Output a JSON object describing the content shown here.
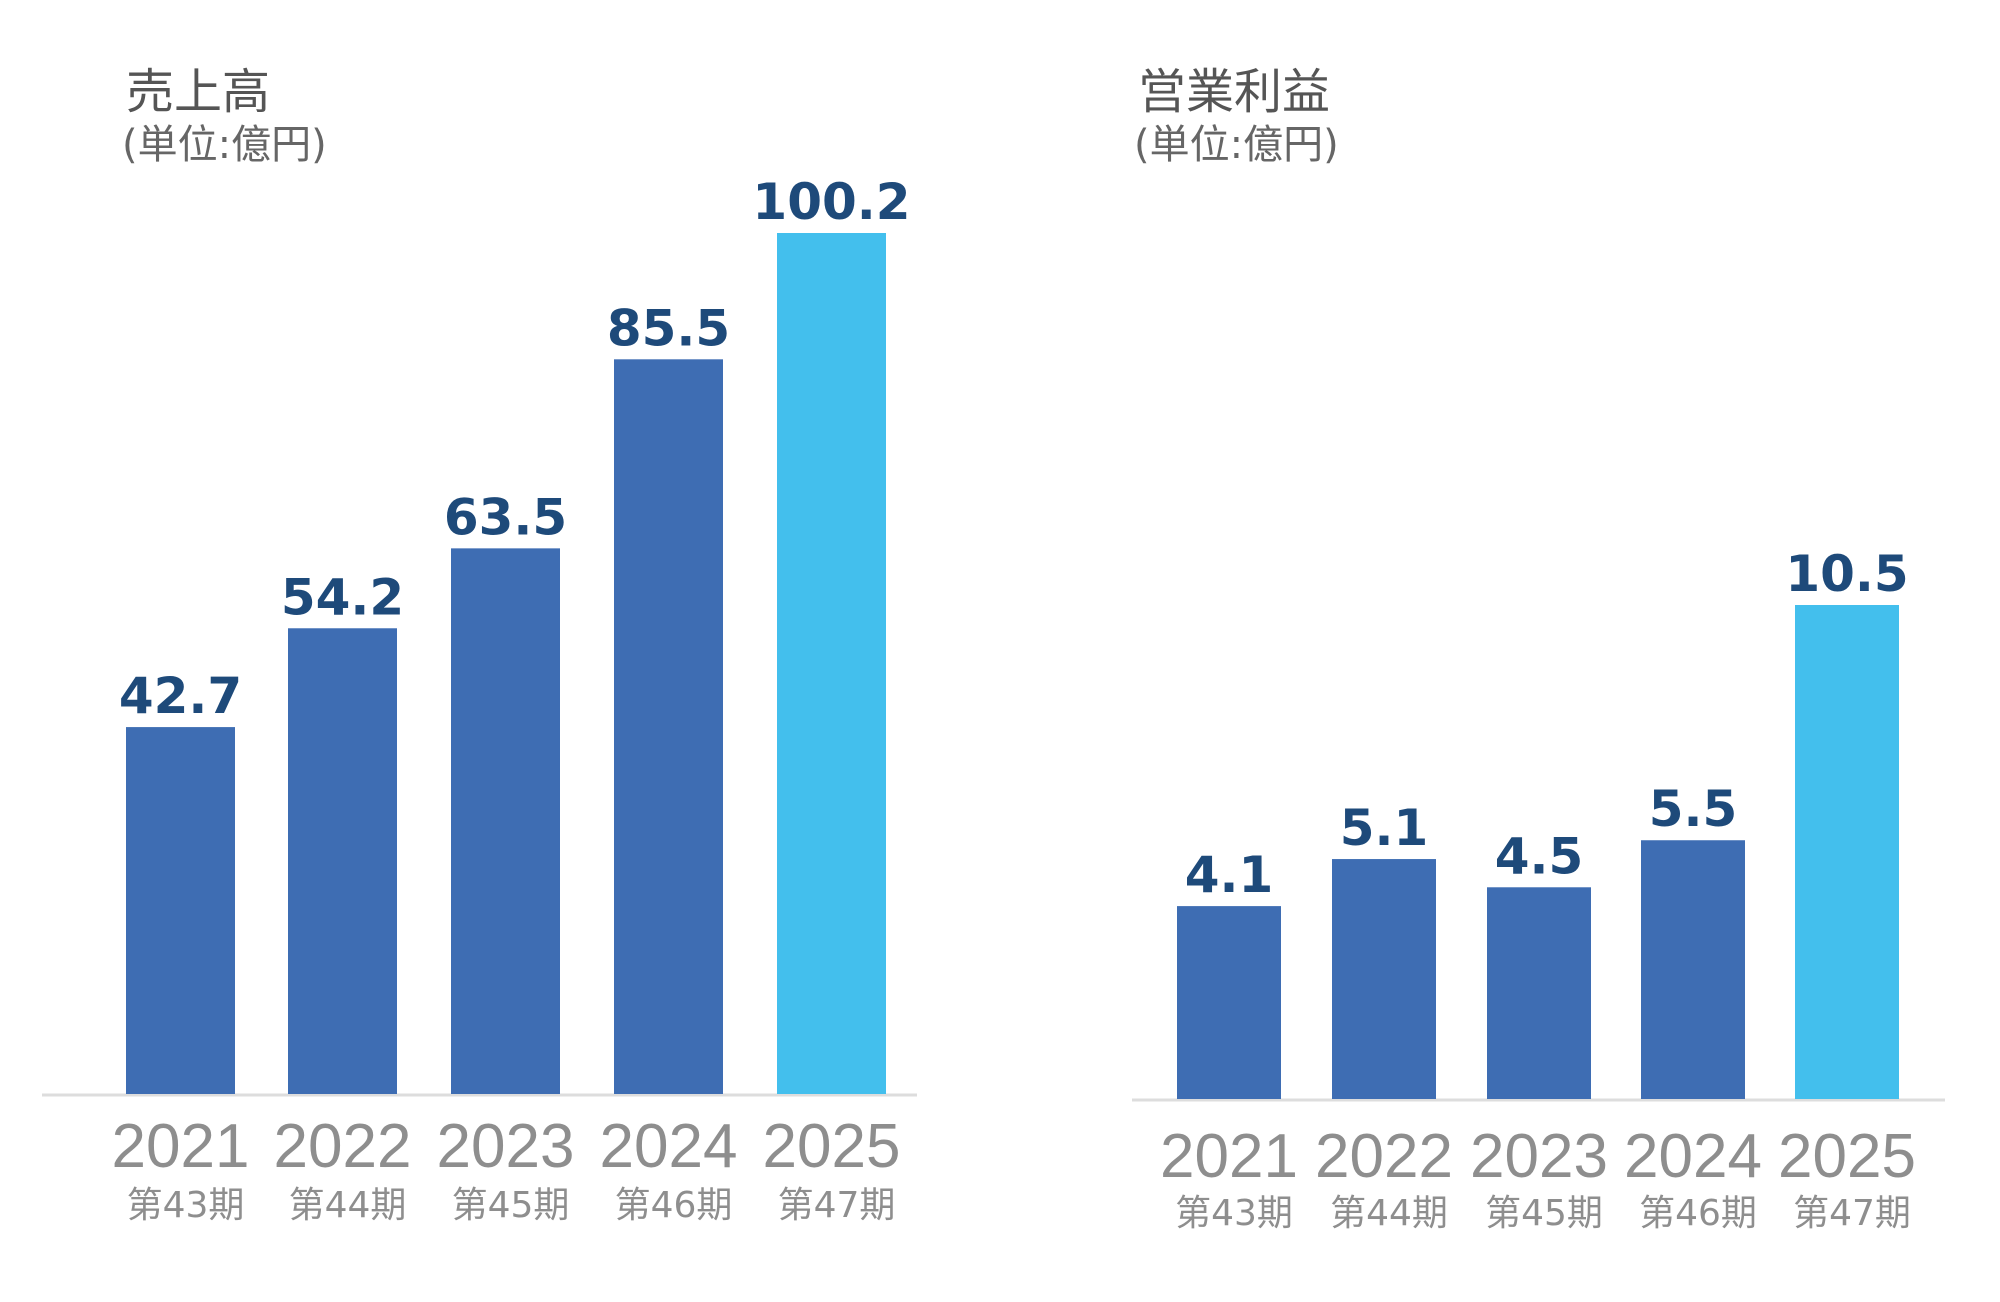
{
  "chart_data": [
    {
      "type": "bar",
      "title": "売上高",
      "subtitle": "(単位:億円)",
      "categories": [
        "2021",
        "2022",
        "2023",
        "2024",
        "2025"
      ],
      "periods": [
        "第43期",
        "第44期",
        "第45期",
        "第46期",
        "第47期"
      ],
      "values": [
        42.7,
        54.2,
        63.5,
        85.5,
        100.2
      ],
      "value_labels": [
        "42.7",
        "54.2",
        "63.5",
        "85.5",
        "100.2"
      ],
      "highlight_index": 4,
      "ylim": [
        0,
        100.2
      ],
      "grid": false
    },
    {
      "type": "bar",
      "title": "営業利益",
      "subtitle": "(単位:億円)",
      "categories": [
        "2021",
        "2022",
        "2023",
        "2024",
        "2025"
      ],
      "periods": [
        "第43期",
        "第44期",
        "第45期",
        "第46期",
        "第47期"
      ],
      "values": [
        4.1,
        5.1,
        4.5,
        5.5,
        10.5
      ],
      "value_labels": [
        "4.1",
        "5.1",
        "4.5",
        "5.5",
        "10.5"
      ],
      "highlight_index": 4,
      "ylim": [
        0,
        10.5
      ],
      "grid": false
    }
  ],
  "colors": {
    "bar": "#3e6db3",
    "highlight": "#43bfed",
    "value_label": "#1e4a7a",
    "axis_label": "#8e8e8e",
    "axis_line": "#dddddd"
  }
}
